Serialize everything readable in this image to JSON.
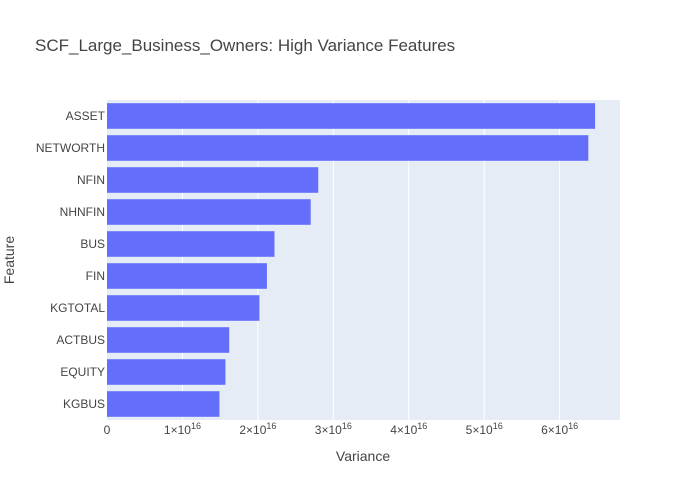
{
  "chart_data": {
    "type": "bar",
    "orientation": "horizontal",
    "title": "SCF_Large_Business_Owners: High Variance Features",
    "xlabel": "Variance",
    "ylabel": "Feature",
    "categories": [
      "ASSET",
      "NETWORTH",
      "NFIN",
      "NHNFIN",
      "BUS",
      "FIN",
      "KGTOTAL",
      "ACTBUS",
      "EQUITY",
      "KGBUS"
    ],
    "values": [
      6.47e+16,
      6.38e+16,
      2.8e+16,
      2.7e+16,
      2.22e+16,
      2.12e+16,
      2.02e+16,
      1.62e+16,
      1.57e+16,
      1.49e+16
    ],
    "xlim": [
      0,
      6.8e+16
    ],
    "x_ticks": [
      0,
      1e+16,
      2e+16,
      3e+16,
      4e+16,
      5e+16,
      6e+16
    ],
    "x_tick_labels": [
      {
        "base": "0",
        "exp": ""
      },
      {
        "base": "1×10",
        "exp": "16"
      },
      {
        "base": "2×10",
        "exp": "16"
      },
      {
        "base": "3×10",
        "exp": "16"
      },
      {
        "base": "4×10",
        "exp": "16"
      },
      {
        "base": "5×10",
        "exp": "16"
      },
      {
        "base": "6×10",
        "exp": "16"
      }
    ],
    "grid": true,
    "colors": {
      "bar": "#636efa",
      "plot_bg": "#e5ecf6",
      "grid": "#ffffff",
      "text": "#444444"
    }
  }
}
